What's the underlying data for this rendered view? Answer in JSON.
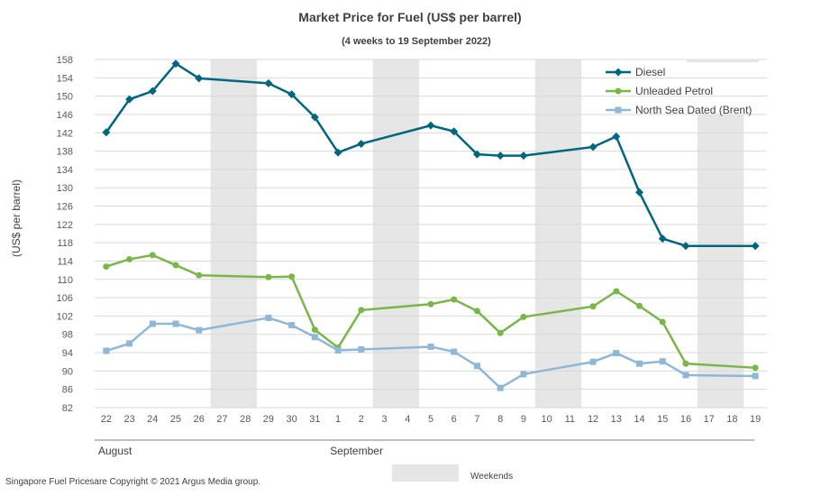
{
  "chart_data": {
    "type": "line",
    "title": "Market Price for Fuel (US$ per barrel)",
    "subtitle": "(4 weeks to 19 September 2022)",
    "ylabel": "(US$ per barrel)",
    "xlabel": "",
    "ylim": [
      82,
      158
    ],
    "ytick_step": 4,
    "grid": true,
    "legend_position": "top-right",
    "categories": [
      "22",
      "23",
      "24",
      "25",
      "26",
      "27",
      "28",
      "29",
      "30",
      "31",
      "1",
      "2",
      "3",
      "4",
      "5",
      "6",
      "7",
      "8",
      "9",
      "10",
      "11",
      "12",
      "13",
      "14",
      "15",
      "16",
      "17",
      "18",
      "19"
    ],
    "month_labels": [
      {
        "label": "August",
        "start": "22",
        "end": "31"
      },
      {
        "label": "September",
        "start": "1",
        "end": "19"
      }
    ],
    "weekends": [
      [
        "27",
        "28"
      ],
      [
        "3",
        "4"
      ],
      [
        "10",
        "11"
      ],
      [
        "17",
        "18"
      ]
    ],
    "weekend_legend_label": "Weekends",
    "series": [
      {
        "name": "Diesel",
        "color": "#00677f",
        "marker": "diamond",
        "values": [
          142.1,
          149.3,
          151.1,
          157.1,
          153.9,
          null,
          null,
          152.8,
          150.4,
          145.4,
          137.7,
          139.6,
          null,
          null,
          143.6,
          142.3,
          137.3,
          137.0,
          137.0,
          null,
          null,
          138.9,
          141.2,
          129.0,
          118.9,
          117.3,
          null,
          null,
          117.3
        ]
      },
      {
        "name": "Unleaded Petrol",
        "color": "#7ab648",
        "marker": "circle",
        "values": [
          112.8,
          114.4,
          115.3,
          113.1,
          110.9,
          null,
          null,
          110.5,
          110.6,
          99.0,
          95.1,
          103.3,
          null,
          null,
          104.6,
          105.6,
          103.1,
          98.3,
          101.8,
          null,
          null,
          104.1,
          107.4,
          104.2,
          100.7,
          91.6,
          null,
          null,
          90.7
        ]
      },
      {
        "name": "North Sea Dated (Brent)",
        "color": "#8fb7d6",
        "marker": "square",
        "values": [
          94.4,
          96.0,
          100.3,
          100.3,
          98.9,
          null,
          null,
          101.6,
          100.0,
          97.4,
          94.5,
          94.7,
          null,
          null,
          95.3,
          94.2,
          91.1,
          86.3,
          89.3,
          null,
          null,
          92.0,
          93.9,
          91.6,
          92.1,
          89.1,
          null,
          null,
          88.9
        ]
      }
    ]
  },
  "footer": {
    "copyright": "Singapore Fuel Pricesare Copyright © 2021 Argus Media group."
  }
}
